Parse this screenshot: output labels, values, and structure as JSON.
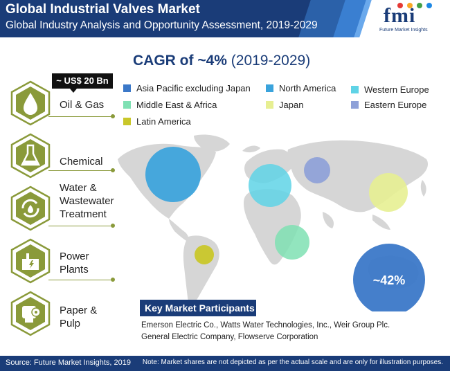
{
  "header": {
    "title": "Global Industrial Valves Market",
    "subtitle": "Global Industry Analysis and Opportunity Assessment, 2019-2029"
  },
  "logo": {
    "text": "fmi",
    "tagline": "Future Market Insights"
  },
  "cagr": {
    "label": "CAGR of ~4%",
    "period": "(2019-2029)"
  },
  "legend": [
    {
      "name": "Asia Pacific excluding Japan",
      "color": "#3b78c8"
    },
    {
      "name": "North America",
      "color": "#3aa3dc"
    },
    {
      "name": "Western Europe",
      "color": "#5fd3e6"
    },
    {
      "name": "Middle East & Africa",
      "color": "#7fe0b3"
    },
    {
      "name": "Japan",
      "color": "#e7ef92"
    },
    {
      "name": "Eastern Europe",
      "color": "#8ea1d8"
    },
    {
      "name": "Latin America",
      "color": "#c9c72a"
    }
  ],
  "map": {
    "share_label": "~42%"
  },
  "segments": {
    "value_badge": "~ US$ 20 Bn",
    "oil_gas": "Oil & Gas",
    "chemical": "Chemical",
    "water_1": "Water &",
    "water_2": "Wastewater",
    "water_3": "Treatment",
    "power_1": "Power",
    "power_2": "Plants",
    "paper_1": "Paper &",
    "paper_2": "Pulp",
    "icons": [
      "oil-drop-icon",
      "flask-icon",
      "water-recycle-icon",
      "power-plant-icon",
      "paper-roll-icon"
    ],
    "accent": "#8a9a3a"
  },
  "participants": {
    "title": "Key Market Participants",
    "line1": "Emerson Electric Co., Watts Water Technologies, Inc., Weir Group Plc.",
    "line2": "General Electric Company, Flowserve Corporation"
  },
  "footer": {
    "source": "Source: Future Market Insights, 2019",
    "note": "Note: Market shares are not depicted as per the actual scale and are only for illustration purposes."
  }
}
